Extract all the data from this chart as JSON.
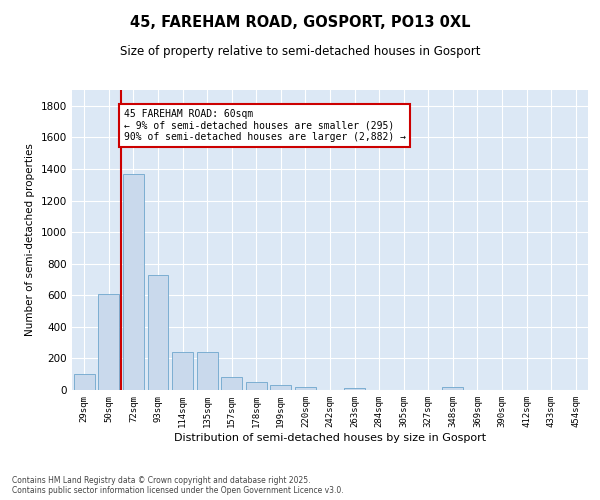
{
  "title_line1": "45, FAREHAM ROAD, GOSPORT, PO13 0XL",
  "title_line2": "Size of property relative to semi-detached houses in Gosport",
  "xlabel": "Distribution of semi-detached houses by size in Gosport",
  "ylabel": "Number of semi-detached properties",
  "categories": [
    "29sqm",
    "50sqm",
    "72sqm",
    "93sqm",
    "114sqm",
    "135sqm",
    "157sqm",
    "178sqm",
    "199sqm",
    "220sqm",
    "242sqm",
    "263sqm",
    "284sqm",
    "305sqm",
    "327sqm",
    "348sqm",
    "369sqm",
    "390sqm",
    "412sqm",
    "433sqm",
    "454sqm"
  ],
  "values": [
    100,
    610,
    1370,
    730,
    240,
    240,
    80,
    50,
    30,
    20,
    0,
    10,
    0,
    0,
    0,
    20,
    0,
    0,
    0,
    0,
    0
  ],
  "bar_color": "#c9d9ec",
  "bar_edge_color": "#6ea6cd",
  "annotation_text": "45 FAREHAM ROAD: 60sqm\n← 9% of semi-detached houses are smaller (295)\n90% of semi-detached houses are larger (2,882) →",
  "vline_color": "#cc0000",
  "annotation_box_color": "#cc0000",
  "ylim": [
    0,
    1900
  ],
  "yticks": [
    0,
    200,
    400,
    600,
    800,
    1000,
    1200,
    1400,
    1600,
    1800
  ],
  "background_color": "#dce8f5",
  "footer_line1": "Contains HM Land Registry data © Crown copyright and database right 2025.",
  "footer_line2": "Contains public sector information licensed under the Open Government Licence v3.0."
}
